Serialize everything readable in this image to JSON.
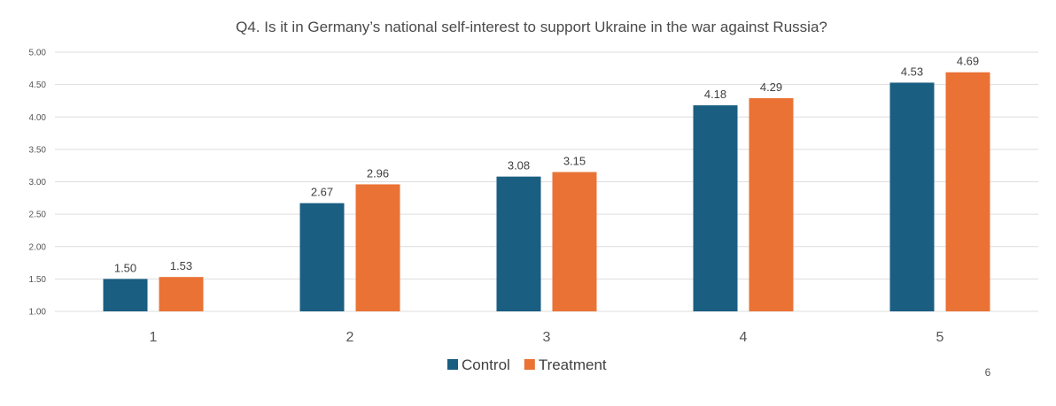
{
  "chart_data": {
    "type": "bar",
    "title": "Q4. Is it in Germany’s national self-interest to support Ukraine in the war against Russia?",
    "categories": [
      "1",
      "2",
      "3",
      "4",
      "5"
    ],
    "series": [
      {
        "name": "Control",
        "color": "#1a5e82",
        "values": [
          1.5,
          2.67,
          3.08,
          4.18,
          4.53
        ]
      },
      {
        "name": "Treatment",
        "color": "#ea7235",
        "values": [
          1.53,
          2.96,
          3.15,
          4.29,
          4.69
        ]
      }
    ],
    "ylim": [
      1.0,
      5.0
    ],
    "yticks": [
      "1.00",
      "1.50",
      "2.00",
      "2.50",
      "3.00",
      "3.50",
      "4.00",
      "4.50",
      "5.00"
    ],
    "grid": true,
    "legend_position": "bottom"
  },
  "page_number": "6"
}
